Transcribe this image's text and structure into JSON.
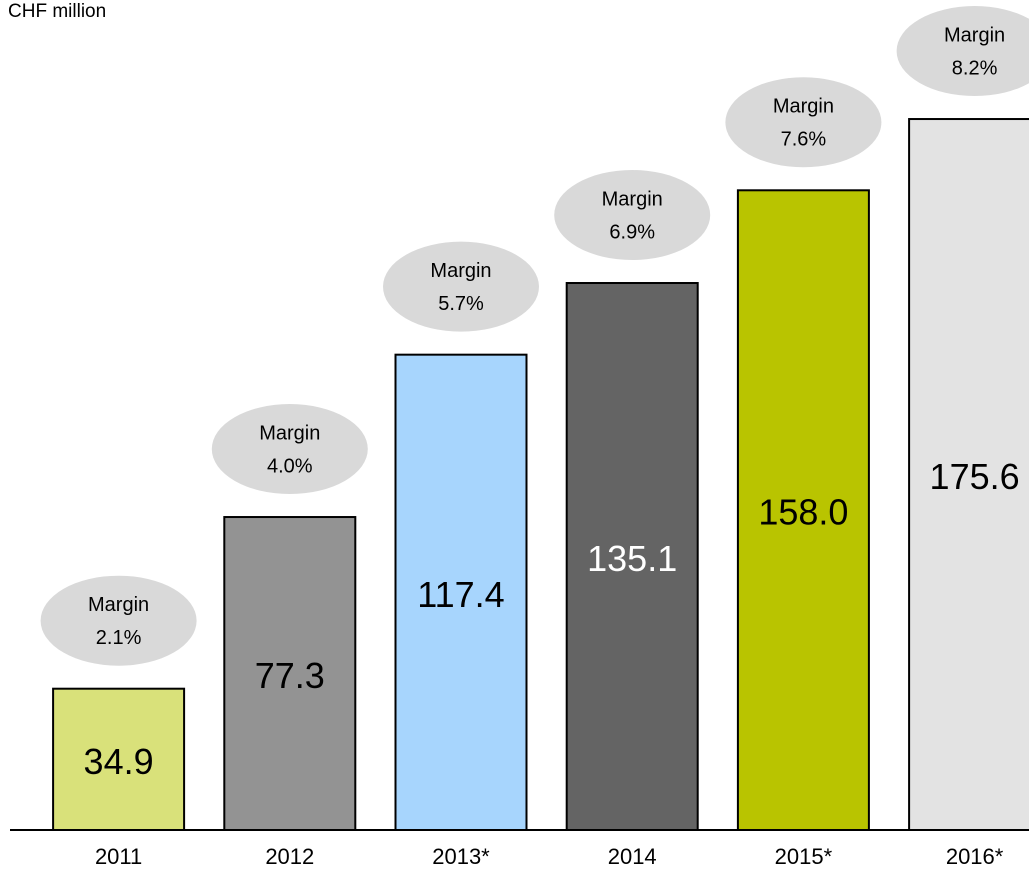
{
  "chart_data": {
    "type": "bar",
    "subtitle": "CHF million",
    "categories": [
      "2011",
      "2012",
      "2013*",
      "2014",
      "2015*",
      "2016*"
    ],
    "values": [
      34.9,
      77.3,
      117.4,
      135.1,
      158.0,
      175.6
    ],
    "value_labels": [
      "34.9",
      "77.3",
      "117.4",
      "135.1",
      "158.0",
      "175.6"
    ],
    "colors": [
      "#d9e17a",
      "#939393",
      "#a7d5fd",
      "#646464",
      "#b9c400",
      "#e3e3e3"
    ],
    "ylim": [
      0,
      205
    ],
    "margins": {
      "name": "Margin",
      "values": [
        2.1,
        4.0,
        5.7,
        6.9,
        7.6,
        8.2
      ],
      "value_labels": [
        "2.1%",
        "4.0%",
        "5.7%",
        "6.9%",
        "7.6%",
        "8.2%"
      ]
    }
  }
}
